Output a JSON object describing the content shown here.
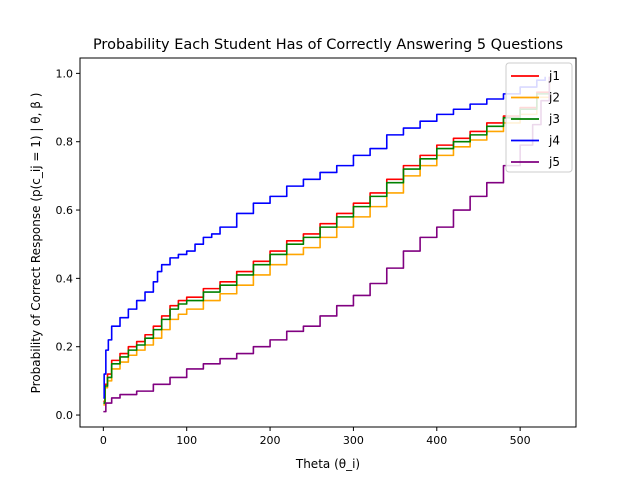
{
  "chart_data": {
    "type": "line",
    "title": "Probability Each Student Has of Correctly Answering 5 Questions",
    "xlabel": "Theta (θ_i)",
    "ylabel": "Probability of Correct Response (p(c_ij = 1) | θ, β )",
    "xlim": [
      -28,
      567
    ],
    "ylim": [
      -0.035,
      1.045
    ],
    "xticks": [
      0,
      100,
      200,
      300,
      400,
      500
    ],
    "yticks": [
      0.0,
      0.2,
      0.4,
      0.6,
      0.8,
      1.0
    ],
    "xtick_labels": [
      "0",
      "100",
      "200",
      "300",
      "400",
      "500"
    ],
    "ytick_labels": [
      "0.0",
      "0.2",
      "0.4",
      "0.6",
      "0.8",
      "1.0"
    ],
    "grid": false,
    "legend_position": "top-right",
    "series": [
      {
        "name": "j1",
        "color": "#ff0000",
        "points": [
          [
            0,
            0.04
          ],
          [
            2,
            0.09
          ],
          [
            5,
            0.12
          ],
          [
            10,
            0.16
          ],
          [
            20,
            0.18
          ],
          [
            30,
            0.2
          ],
          [
            40,
            0.215
          ],
          [
            50,
            0.235
          ],
          [
            60,
            0.26
          ],
          [
            70,
            0.29
          ],
          [
            80,
            0.32
          ],
          [
            90,
            0.335
          ],
          [
            100,
            0.345
          ],
          [
            120,
            0.37
          ],
          [
            140,
            0.39
          ],
          [
            160,
            0.42
          ],
          [
            180,
            0.45
          ],
          [
            200,
            0.48
          ],
          [
            220,
            0.51
          ],
          [
            240,
            0.53
          ],
          [
            260,
            0.56
          ],
          [
            280,
            0.59
          ],
          [
            300,
            0.62
          ],
          [
            320,
            0.65
          ],
          [
            340,
            0.69
          ],
          [
            360,
            0.73
          ],
          [
            380,
            0.76
          ],
          [
            400,
            0.79
          ],
          [
            420,
            0.81
          ],
          [
            440,
            0.83
          ],
          [
            460,
            0.855
          ],
          [
            480,
            0.875
          ],
          [
            500,
            0.9
          ],
          [
            520,
            0.945
          ],
          [
            535,
            0.99
          ]
        ]
      },
      {
        "name": "j2",
        "color": "#ffa500",
        "points": [
          [
            0,
            0.03
          ],
          [
            2,
            0.08
          ],
          [
            5,
            0.1
          ],
          [
            10,
            0.135
          ],
          [
            20,
            0.155
          ],
          [
            30,
            0.175
          ],
          [
            40,
            0.19
          ],
          [
            50,
            0.205
          ],
          [
            60,
            0.225
          ],
          [
            70,
            0.25
          ],
          [
            80,
            0.28
          ],
          [
            90,
            0.295
          ],
          [
            100,
            0.31
          ],
          [
            120,
            0.335
          ],
          [
            140,
            0.355
          ],
          [
            160,
            0.38
          ],
          [
            180,
            0.41
          ],
          [
            200,
            0.44
          ],
          [
            220,
            0.47
          ],
          [
            240,
            0.49
          ],
          [
            260,
            0.52
          ],
          [
            280,
            0.55
          ],
          [
            300,
            0.58
          ],
          [
            320,
            0.61
          ],
          [
            340,
            0.65
          ],
          [
            360,
            0.7
          ],
          [
            380,
            0.73
          ],
          [
            400,
            0.76
          ],
          [
            420,
            0.785
          ],
          [
            440,
            0.805
          ],
          [
            460,
            0.83
          ],
          [
            480,
            0.855
          ],
          [
            500,
            0.88
          ],
          [
            520,
            0.93
          ],
          [
            535,
            0.98
          ]
        ]
      },
      {
        "name": "j3",
        "color": "#008000",
        "points": [
          [
            0,
            0.035
          ],
          [
            2,
            0.085
          ],
          [
            5,
            0.11
          ],
          [
            10,
            0.15
          ],
          [
            20,
            0.17
          ],
          [
            30,
            0.19
          ],
          [
            40,
            0.205
          ],
          [
            50,
            0.225
          ],
          [
            60,
            0.25
          ],
          [
            70,
            0.28
          ],
          [
            80,
            0.31
          ],
          [
            90,
            0.325
          ],
          [
            100,
            0.335
          ],
          [
            120,
            0.36
          ],
          [
            140,
            0.38
          ],
          [
            160,
            0.41
          ],
          [
            180,
            0.44
          ],
          [
            200,
            0.47
          ],
          [
            220,
            0.5
          ],
          [
            240,
            0.52
          ],
          [
            260,
            0.55
          ],
          [
            280,
            0.58
          ],
          [
            300,
            0.61
          ],
          [
            320,
            0.64
          ],
          [
            340,
            0.68
          ],
          [
            360,
            0.72
          ],
          [
            380,
            0.75
          ],
          [
            400,
            0.78
          ],
          [
            420,
            0.8
          ],
          [
            440,
            0.82
          ],
          [
            460,
            0.845
          ],
          [
            480,
            0.87
          ],
          [
            500,
            0.895
          ],
          [
            520,
            0.94
          ],
          [
            535,
            0.985
          ]
        ]
      },
      {
        "name": "j4",
        "color": "#0000ff",
        "points": [
          [
            0,
            0.05
          ],
          [
            1,
            0.12
          ],
          [
            3,
            0.19
          ],
          [
            6,
            0.22
          ],
          [
            10,
            0.26
          ],
          [
            20,
            0.285
          ],
          [
            30,
            0.31
          ],
          [
            40,
            0.335
          ],
          [
            50,
            0.36
          ],
          [
            60,
            0.39
          ],
          [
            65,
            0.42
          ],
          [
            70,
            0.44
          ],
          [
            80,
            0.46
          ],
          [
            90,
            0.47
          ],
          [
            100,
            0.48
          ],
          [
            110,
            0.5
          ],
          [
            120,
            0.52
          ],
          [
            130,
            0.53
          ],
          [
            140,
            0.55
          ],
          [
            160,
            0.59
          ],
          [
            180,
            0.62
          ],
          [
            200,
            0.64
          ],
          [
            220,
            0.67
          ],
          [
            240,
            0.69
          ],
          [
            260,
            0.71
          ],
          [
            280,
            0.73
          ],
          [
            300,
            0.76
          ],
          [
            320,
            0.78
          ],
          [
            340,
            0.82
          ],
          [
            360,
            0.84
          ],
          [
            380,
            0.86
          ],
          [
            400,
            0.88
          ],
          [
            420,
            0.895
          ],
          [
            440,
            0.91
          ],
          [
            460,
            0.925
          ],
          [
            480,
            0.94
          ],
          [
            500,
            0.96
          ],
          [
            520,
            0.98
          ],
          [
            530,
            0.99
          ]
        ]
      },
      {
        "name": "j5",
        "color": "#800080",
        "points": [
          [
            0,
            0.01
          ],
          [
            3,
            0.035
          ],
          [
            10,
            0.05
          ],
          [
            20,
            0.06
          ],
          [
            40,
            0.07
          ],
          [
            60,
            0.09
          ],
          [
            80,
            0.11
          ],
          [
            100,
            0.135
          ],
          [
            120,
            0.15
          ],
          [
            140,
            0.165
          ],
          [
            160,
            0.18
          ],
          [
            180,
            0.2
          ],
          [
            200,
            0.22
          ],
          [
            220,
            0.245
          ],
          [
            240,
            0.26
          ],
          [
            260,
            0.29
          ],
          [
            280,
            0.32
          ],
          [
            300,
            0.35
          ],
          [
            320,
            0.385
          ],
          [
            340,
            0.43
          ],
          [
            360,
            0.48
          ],
          [
            380,
            0.52
          ],
          [
            400,
            0.55
          ],
          [
            420,
            0.6
          ],
          [
            440,
            0.64
          ],
          [
            460,
            0.68
          ],
          [
            480,
            0.73
          ],
          [
            500,
            0.79
          ],
          [
            515,
            0.85
          ],
          [
            525,
            0.92
          ],
          [
            535,
            0.99
          ]
        ]
      }
    ]
  }
}
